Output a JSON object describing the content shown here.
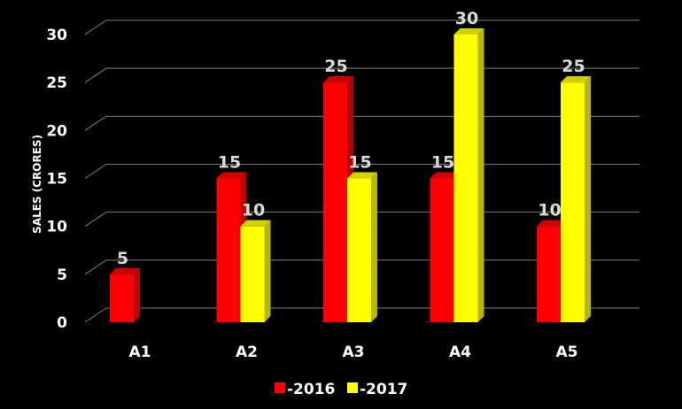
{
  "chart_data": {
    "type": "bar",
    "title": "",
    "xlabel": "",
    "ylabel": "SALES (CRORES)",
    "ylim": [
      0,
      30
    ],
    "yticks": [
      0,
      5,
      10,
      15,
      20,
      25,
      30
    ],
    "categories": [
      "A1",
      "A2",
      "A3",
      "A4",
      "A5"
    ],
    "series": [
      {
        "name": "2016",
        "legend_label": "-2016",
        "color": "#ff0000",
        "values": [
          5,
          15,
          25,
          15,
          10
        ]
      },
      {
        "name": "2017",
        "legend_label": "-2017",
        "color": "#ffff00",
        "values": [
          null,
          10,
          15,
          30,
          25
        ]
      }
    ],
    "data_labels": true,
    "grid": true,
    "legend_position": "bottom",
    "background_color": "#000000"
  }
}
